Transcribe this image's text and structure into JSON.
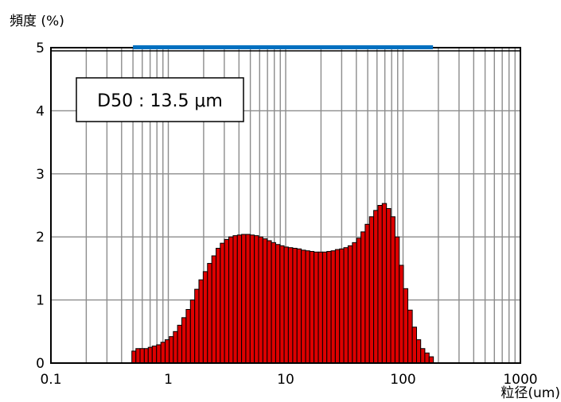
{
  "chart_data": {
    "type": "bar",
    "ylabel": "頻度 (%)",
    "xlabel": "粒径(um)",
    "x_scale": "log",
    "xlim": [
      0.1,
      1000
    ],
    "ylim": [
      0,
      5
    ],
    "x_tick_labels": [
      "0.1",
      "1",
      "10",
      "100",
      "1000"
    ],
    "y_tick_labels": [
      "0",
      "1",
      "2",
      "3",
      "4",
      "5"
    ],
    "grid": true,
    "annotation": "D50 : 13.5 μm",
    "range_indicator": {
      "from": 0.5,
      "to": 180,
      "color": "#0070c0"
    },
    "bar_color": "#dd0000",
    "series": [
      {
        "x": [
          0.51,
          0.55,
          0.6,
          0.65,
          0.7,
          0.76,
          0.83,
          0.9,
          0.98,
          1.06,
          1.15,
          1.25,
          1.36,
          1.48,
          1.61,
          1.75,
          1.9,
          2.07,
          2.25,
          2.45,
          2.66,
          2.89,
          3.14,
          3.42,
          3.72,
          4.04,
          4.39,
          4.77,
          5.19,
          5.64,
          6.13,
          6.67,
          7.25,
          7.88,
          8.57,
          9.32,
          10.1,
          11.0,
          12.0,
          13.0,
          14.2,
          15.4,
          16.7,
          18.2,
          19.8,
          21.5,
          23.4,
          25.4,
          27.6,
          30.0,
          32.6,
          35.5,
          38.6,
          42.0,
          45.6,
          49.6,
          53.9,
          58.6,
          63.7,
          69.3,
          75.3,
          81.9,
          89.1,
          96.8,
          105,
          115,
          125,
          136,
          147,
          160,
          174
        ],
        "values": [
          0.19,
          0.23,
          0.23,
          0.23,
          0.25,
          0.27,
          0.29,
          0.33,
          0.37,
          0.42,
          0.5,
          0.6,
          0.72,
          0.85,
          1.0,
          1.17,
          1.32,
          1.45,
          1.58,
          1.7,
          1.82,
          1.9,
          1.96,
          2.0,
          2.02,
          2.03,
          2.04,
          2.04,
          2.03,
          2.02,
          2.0,
          1.97,
          1.94,
          1.91,
          1.88,
          1.86,
          1.84,
          1.83,
          1.82,
          1.81,
          1.79,
          1.78,
          1.77,
          1.76,
          1.76,
          1.76,
          1.77,
          1.78,
          1.8,
          1.81,
          1.83,
          1.86,
          1.91,
          1.98,
          2.08,
          2.2,
          2.32,
          2.42,
          2.5,
          2.53,
          2.45,
          2.32,
          2.0,
          1.55,
          1.18,
          0.84,
          0.57,
          0.37,
          0.23,
          0.16,
          0.1
        ]
      }
    ]
  }
}
